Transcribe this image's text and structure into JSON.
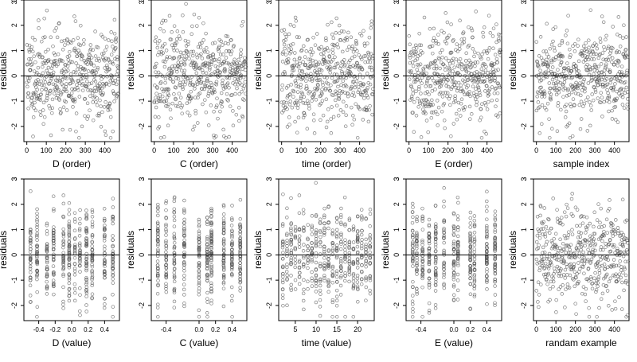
{
  "figure": {
    "background": "#ffffff",
    "point_color": "#555555",
    "line_color": "#000000"
  },
  "chart_data": [
    {
      "type": "scatter",
      "xlabel": "D (order)",
      "ylabel": "residuals",
      "xlim": [
        -15,
        475
      ],
      "ylim": [
        -2.6,
        3.0
      ],
      "xticks": [
        0,
        100,
        200,
        300,
        400
      ],
      "yticks": [
        -2,
        -1,
        0,
        1,
        2,
        3
      ],
      "reference_line_y": 0,
      "x_kind": "index",
      "seed": 11
    },
    {
      "type": "scatter",
      "xlabel": "C (order)",
      "ylabel": "residuals",
      "xlim": [
        -15,
        475
      ],
      "ylim": [
        -2.6,
        3.0
      ],
      "xticks": [
        0,
        100,
        200,
        300,
        400
      ],
      "yticks": [
        -2,
        -1,
        0,
        1,
        2,
        3
      ],
      "reference_line_y": 0,
      "x_kind": "index",
      "seed": 23
    },
    {
      "type": "scatter",
      "xlabel": "time (order)",
      "ylabel": "residuals",
      "xlim": [
        -15,
        475
      ],
      "ylim": [
        -2.6,
        3.0
      ],
      "xticks": [
        0,
        100,
        200,
        300,
        400
      ],
      "yticks": [
        -2,
        -1,
        0,
        1,
        2,
        3
      ],
      "reference_line_y": 0,
      "x_kind": "index",
      "seed": 37
    },
    {
      "type": "scatter",
      "xlabel": "E (order)",
      "ylabel": "residuals",
      "xlim": [
        -15,
        475
      ],
      "ylim": [
        -2.6,
        3.0
      ],
      "xticks": [
        0,
        100,
        200,
        300,
        400
      ],
      "yticks": [
        -2,
        -1,
        0,
        1,
        2,
        3
      ],
      "reference_line_y": 0,
      "x_kind": "index",
      "seed": 41
    },
    {
      "type": "scatter",
      "xlabel": "sample index",
      "ylabel": "residuals",
      "xlim": [
        -15,
        475
      ],
      "ylim": [
        -2.6,
        3.0
      ],
      "xticks": [
        0,
        100,
        200,
        300,
        400
      ],
      "yticks": [
        -2,
        -1,
        0,
        1,
        2,
        3
      ],
      "reference_line_y": 0,
      "x_kind": "index",
      "seed": 53
    },
    {
      "type": "scatter",
      "xlabel": "D (value)",
      "ylabel": "residuals",
      "xlim": [
        -0.58,
        0.58
      ],
      "ylim": [
        -2.6,
        3.0
      ],
      "xticks": [
        -0.4,
        -0.2,
        0.0,
        0.2,
        0.4
      ],
      "xticklabels": [
        "-0.4",
        "-0.2",
        "0.0",
        "0.2",
        "0.4"
      ],
      "yticks": [
        -2,
        -1,
        0,
        1,
        2,
        3
      ],
      "reference_line_y": 0,
      "x_kind": "levels",
      "x_levels": [
        -0.5,
        -0.42,
        -0.3,
        -0.22,
        -0.1,
        -0.03,
        0.04,
        0.1,
        0.18,
        0.25,
        0.4,
        0.5
      ],
      "seed": 61
    },
    {
      "type": "scatter",
      "xlabel": "C (value)",
      "ylabel": "residuals",
      "xlim": [
        -0.58,
        0.58
      ],
      "ylim": [
        -2.6,
        3.0
      ],
      "xticks": [
        -0.4,
        0.0,
        0.2,
        0.4
      ],
      "xticklabels": [
        "-0.4",
        "0.0",
        "0.2",
        "0.4"
      ],
      "yticks": [
        -2,
        -1,
        0,
        1,
        2,
        3
      ],
      "reference_line_y": 0,
      "x_kind": "levels",
      "x_levels": [
        -0.5,
        -0.4,
        -0.3,
        -0.18,
        0.0,
        0.1,
        0.15,
        0.3,
        0.4,
        0.5
      ],
      "seed": 71
    },
    {
      "type": "scatter",
      "xlabel": "time (value)",
      "ylabel": "residuals",
      "xlim": [
        1,
        24
      ],
      "ylim": [
        -2.6,
        3.0
      ],
      "xticks": [
        5,
        10,
        15,
        20
      ],
      "yticks": [
        -2,
        -1,
        0,
        1,
        2,
        3
      ],
      "reference_line_y": 0,
      "x_kind": "levels",
      "x_levels": [
        2,
        3,
        4,
        5,
        6,
        7,
        8,
        9,
        10,
        11,
        12,
        13,
        14,
        15,
        16,
        17,
        18,
        19,
        20,
        21,
        22,
        23
      ],
      "seed": 83
    },
    {
      "type": "scatter",
      "xlabel": "E (value)",
      "ylabel": "residuals",
      "xlim": [
        -0.58,
        0.58
      ],
      "ylim": [
        -2.6,
        3.0
      ],
      "xticks": [
        -0.4,
        0.0,
        0.2,
        0.4
      ],
      "xticklabels": [
        "-0.4",
        "0.0",
        "0.2",
        "0.4"
      ],
      "yticks": [
        -2,
        -1,
        0,
        1,
        2,
        3
      ],
      "reference_line_y": 0,
      "x_kind": "levels",
      "x_levels": [
        -0.5,
        -0.45,
        -0.38,
        -0.3,
        -0.22,
        -0.12,
        0.0,
        0.05,
        0.2,
        0.25,
        0.4,
        0.5
      ],
      "seed": 97
    },
    {
      "type": "scatter",
      "xlabel": "randam example",
      "ylabel": "residuals",
      "xlim": [
        -15,
        475
      ],
      "ylim": [
        -2.6,
        3.0
      ],
      "xticks": [
        0,
        100,
        200,
        300,
        400
      ],
      "yticks": [
        -2,
        -1,
        0,
        1,
        2,
        3
      ],
      "reference_line_y": 0,
      "x_kind": "index",
      "seed": 101
    }
  ]
}
